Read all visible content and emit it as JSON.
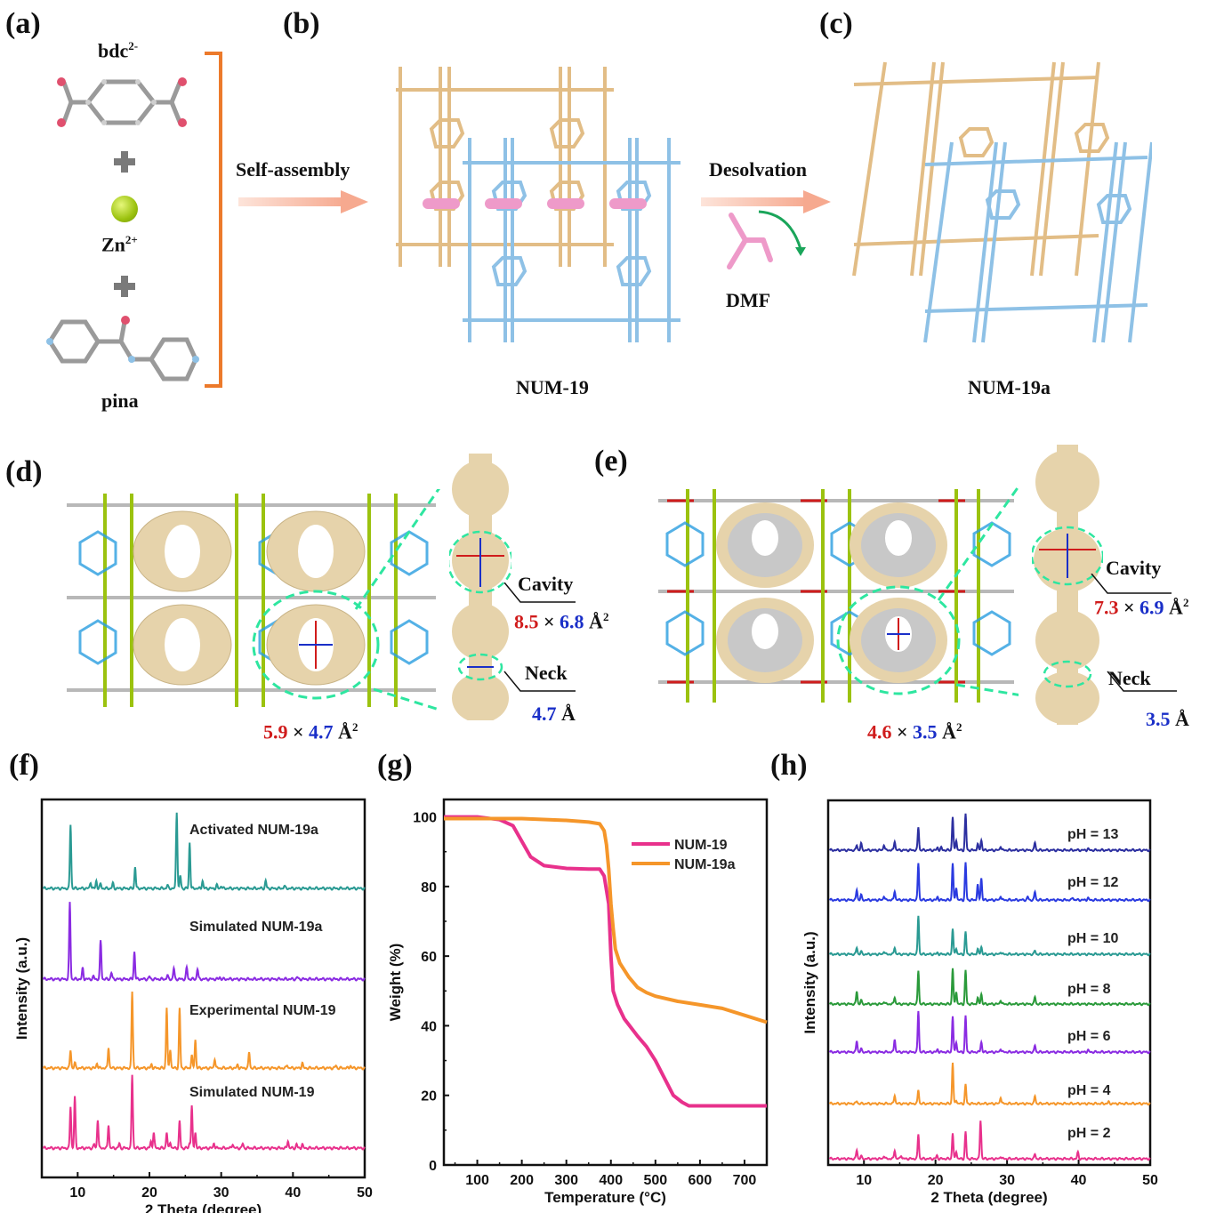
{
  "panels": {
    "a": {
      "label": "(a)",
      "ligand1": "bdc",
      "ligand1_charge": "2-",
      "metal": "Zn",
      "metal_charge": "2+",
      "ligand2": "pina",
      "plus": "+"
    },
    "b": {
      "label": "(b)",
      "arrow_text": "Self-assembly",
      "caption": "NUM-19"
    },
    "c": {
      "label": "(c)",
      "arrow_text": "Desolvation",
      "solvent": "DMF",
      "caption": "NUM-19a"
    },
    "d": {
      "label": "(d)",
      "channel_w": "5.9",
      "channel_h": "4.7",
      "unit": "Å",
      "sup": "2",
      "times": "×",
      "cavity_label": "Cavity",
      "cavity_w": "8.5",
      "cavity_h": "6.8",
      "neck_label": "Neck",
      "neck": "4.7"
    },
    "e": {
      "label": "(e)",
      "channel_w": "4.6",
      "channel_h": "3.5",
      "unit": "Å",
      "sup": "2",
      "times": "×",
      "cavity_label": "Cavity",
      "cavity_w": "7.3",
      "cavity_h": "6.9",
      "neck_label": "Neck",
      "neck": "3.5"
    },
    "f": {
      "label": "(f)"
    },
    "g": {
      "label": "(g)"
    },
    "h": {
      "label": "(h)"
    }
  },
  "colors": {
    "tan": "#e2bd86",
    "blue_frame": "#8ec1e6",
    "pink": "#ee9ac9",
    "orange_bracket": "#ec7a2b",
    "arrow": "#f6b39b",
    "green_arrow": "#1aa55a",
    "red_dim": "#d01c1c",
    "blue_dim": "#1a2fc8",
    "dash": "#2ee6a0"
  },
  "chart_data": [
    {
      "id": "f",
      "type": "line",
      "title": "",
      "xlabel": "2 Theta (degree)",
      "ylabel": "Intensity (a.u.)",
      "xlim": [
        5,
        50
      ],
      "xticks": [
        10,
        20,
        30,
        40,
        50
      ],
      "stacked": true,
      "series": [
        {
          "name": "Activated NUM-19a",
          "color": "#2a9a93",
          "peaks": [
            [
              9.0,
              1.0
            ],
            [
              11.8,
              0.1
            ],
            [
              12.6,
              0.12
            ],
            [
              13.2,
              0.07
            ],
            [
              14.9,
              0.08
            ],
            [
              18.0,
              0.34
            ],
            [
              22.5,
              0.05
            ],
            [
              23.8,
              1.2
            ],
            [
              24.3,
              0.2
            ],
            [
              25.6,
              0.72
            ],
            [
              27.4,
              0.12
            ],
            [
              29.4,
              0.05
            ],
            [
              30.0,
              0.04
            ],
            [
              36.2,
              0.12
            ],
            [
              38.8,
              0.04
            ]
          ]
        },
        {
          "name": "Simulated NUM-19a",
          "color": "#8a2be2",
          "peaks": [
            [
              8.9,
              1.2
            ],
            [
              10.7,
              0.17
            ],
            [
              12.2,
              0.04
            ],
            [
              13.2,
              0.6
            ],
            [
              14.7,
              0.1
            ],
            [
              17.9,
              0.43
            ],
            [
              20.0,
              0.04
            ],
            [
              22.5,
              0.06
            ],
            [
              23.4,
              0.17
            ],
            [
              25.2,
              0.18
            ],
            [
              26.7,
              0.16
            ],
            [
              29.8,
              0.03
            ],
            [
              40.6,
              0.03
            ]
          ]
        },
        {
          "name": "Experimental NUM-19",
          "color": "#f5962a",
          "peaks": [
            [
              9.0,
              0.28
            ],
            [
              9.6,
              0.08
            ],
            [
              12.7,
              0.08
            ],
            [
              14.3,
              0.33
            ],
            [
              17.6,
              1.2
            ],
            [
              20.3,
              0.06
            ],
            [
              22.4,
              0.95
            ],
            [
              22.9,
              0.3
            ],
            [
              24.2,
              0.93
            ],
            [
              25.9,
              0.2
            ],
            [
              26.4,
              0.45
            ],
            [
              29.1,
              0.15
            ],
            [
              32.3,
              0.05
            ],
            [
              33.9,
              0.25
            ],
            [
              39.2,
              0.05
            ],
            [
              41.3,
              0.08
            ],
            [
              46.0,
              0.04
            ],
            [
              48.0,
              0.04
            ]
          ]
        },
        {
          "name": "Simulated NUM-19",
          "color": "#e8318c",
          "peaks": [
            [
              9.0,
              0.65
            ],
            [
              9.6,
              0.8
            ],
            [
              12.3,
              0.06
            ],
            [
              12.8,
              0.45
            ],
            [
              14.3,
              0.37
            ],
            [
              15.8,
              0.07
            ],
            [
              17.6,
              1.15
            ],
            [
              20.2,
              0.1
            ],
            [
              20.6,
              0.25
            ],
            [
              22.4,
              0.25
            ],
            [
              22.9,
              0.1
            ],
            [
              24.2,
              0.42
            ],
            [
              25.6,
              0.08
            ],
            [
              25.9,
              0.66
            ],
            [
              26.4,
              0.25
            ],
            [
              29.0,
              0.08
            ],
            [
              31.6,
              0.07
            ],
            [
              33.0,
              0.07
            ],
            [
              39.3,
              0.12
            ],
            [
              40.5,
              0.06
            ],
            [
              41.3,
              0.06
            ]
          ]
        }
      ]
    },
    {
      "id": "g",
      "type": "line",
      "title": "",
      "xlabel": "Temperature (°C)",
      "ylabel": "Weight (%)",
      "xlim": [
        25,
        750
      ],
      "ylim": [
        0,
        105
      ],
      "xticks": [
        100,
        200,
        300,
        400,
        500,
        600,
        700
      ],
      "yticks": [
        0,
        20,
        40,
        60,
        80,
        100
      ],
      "legend": "top-right",
      "series": [
        {
          "name": "NUM-19",
          "color": "#e8318c",
          "x": [
            25,
            100,
            150,
            180,
            200,
            220,
            250,
            300,
            350,
            375,
            385,
            395,
            400,
            405,
            415,
            430,
            460,
            480,
            500,
            520,
            540,
            560,
            575,
            600,
            700,
            750
          ],
          "y": [
            100,
            100,
            99.2,
            97.5,
            93,
            88.5,
            86,
            85.2,
            85,
            85,
            83,
            75,
            60,
            50,
            46,
            42,
            37,
            34,
            30,
            25,
            20,
            18,
            17,
            17,
            17,
            17
          ]
        },
        {
          "name": "NUM-19a",
          "color": "#f5962a",
          "x": [
            25,
            100,
            200,
            300,
            350,
            375,
            385,
            390,
            395,
            400,
            405,
            410,
            420,
            440,
            460,
            480,
            500,
            550,
            600,
            650,
            700,
            750
          ],
          "y": [
            99.5,
            99.5,
            99.5,
            99,
            98.5,
            98,
            96,
            92,
            85,
            75,
            68,
            62,
            58,
            54,
            51,
            49.5,
            48.5,
            47,
            46,
            45,
            43,
            41
          ]
        }
      ]
    },
    {
      "id": "h",
      "type": "line",
      "title": "",
      "xlabel": "2 Theta (degree)",
      "ylabel": "Intensity (a.u.)",
      "xlim": [
        5,
        50
      ],
      "xticks": [
        10,
        20,
        30,
        40,
        50
      ],
      "stacked": true,
      "series": [
        {
          "name": "pH = 13",
          "color": "#2c2fa0",
          "peaks": [
            [
              9.0,
              0.1
            ],
            [
              9.6,
              0.13
            ],
            [
              12.8,
              0.11
            ],
            [
              14.3,
              0.18
            ],
            [
              17.6,
              0.45
            ],
            [
              20.3,
              0.05
            ],
            [
              20.8,
              0.05
            ],
            [
              22.4,
              0.65
            ],
            [
              22.9,
              0.2
            ],
            [
              24.2,
              0.7
            ],
            [
              25.9,
              0.12
            ],
            [
              26.4,
              0.2
            ],
            [
              29.1,
              0.08
            ],
            [
              33.9,
              0.15
            ],
            [
              41.3,
              0.03
            ]
          ]
        },
        {
          "name": "pH = 12",
          "color": "#2a3ae0",
          "peaks": [
            [
              9.0,
              0.2
            ],
            [
              9.6,
              0.1
            ],
            [
              12.8,
              0.08
            ],
            [
              14.3,
              0.18
            ],
            [
              17.6,
              0.72
            ],
            [
              20.3,
              0.06
            ],
            [
              22.4,
              0.72
            ],
            [
              22.9,
              0.25
            ],
            [
              24.2,
              0.72
            ],
            [
              25.9,
              0.3
            ],
            [
              26.4,
              0.43
            ],
            [
              29.1,
              0.08
            ],
            [
              32.9,
              0.06
            ],
            [
              33.9,
              0.16
            ],
            [
              39.2,
              0.05
            ],
            [
              41.3,
              0.04
            ]
          ]
        },
        {
          "name": "pH = 10",
          "color": "#2a9a93",
          "peaks": [
            [
              9.0,
              0.13
            ],
            [
              9.6,
              0.05
            ],
            [
              12.8,
              0.06
            ],
            [
              14.3,
              0.14
            ],
            [
              17.6,
              0.75
            ],
            [
              20.3,
              0.03
            ],
            [
              22.4,
              0.5
            ],
            [
              22.9,
              0.12
            ],
            [
              24.2,
              0.43
            ],
            [
              25.9,
              0.1
            ],
            [
              26.4,
              0.15
            ],
            [
              29.1,
              0.05
            ],
            [
              33.9,
              0.07
            ]
          ]
        },
        {
          "name": "pH = 8",
          "color": "#2a9a3a",
          "peaks": [
            [
              9.0,
              0.25
            ],
            [
              9.6,
              0.07
            ],
            [
              12.8,
              0.05
            ],
            [
              14.3,
              0.14
            ],
            [
              17.6,
              0.65
            ],
            [
              22.4,
              0.7
            ],
            [
              22.9,
              0.25
            ],
            [
              24.2,
              0.65
            ],
            [
              25.9,
              0.12
            ],
            [
              26.4,
              0.2
            ],
            [
              29.1,
              0.08
            ],
            [
              33.9,
              0.14
            ]
          ]
        },
        {
          "name": "pH = 6",
          "color": "#8a2be2",
          "peaks": [
            [
              9.0,
              0.22
            ],
            [
              9.6,
              0.06
            ],
            [
              14.3,
              0.26
            ],
            [
              17.6,
              0.8
            ],
            [
              20.3,
              0.05
            ],
            [
              22.4,
              0.7
            ],
            [
              22.9,
              0.2
            ],
            [
              24.2,
              0.7
            ],
            [
              26.4,
              0.2
            ],
            [
              29.1,
              0.07
            ],
            [
              33.9,
              0.13
            ],
            [
              41.3,
              0.04
            ]
          ]
        },
        {
          "name": "pH = 4",
          "color": "#f5962a",
          "peaks": [
            [
              9.0,
              0.05
            ],
            [
              14.3,
              0.17
            ],
            [
              17.6,
              0.27
            ],
            [
              22.4,
              0.8
            ],
            [
              22.9,
              0.07
            ],
            [
              24.2,
              0.37
            ],
            [
              29.1,
              0.13
            ],
            [
              33.9,
              0.15
            ],
            [
              44.2,
              0.03
            ]
          ]
        },
        {
          "name": "pH = 2",
          "color": "#e8318c",
          "peaks": [
            [
              9.0,
              0.17
            ],
            [
              9.6,
              0.05
            ],
            [
              12.8,
              0.06
            ],
            [
              14.3,
              0.17
            ],
            [
              15.2,
              0.07
            ],
            [
              17.6,
              0.48
            ],
            [
              20.2,
              0.06
            ],
            [
              22.4,
              0.5
            ],
            [
              22.9,
              0.15
            ],
            [
              24.2,
              0.52
            ],
            [
              26.3,
              0.75
            ],
            [
              29.1,
              0.05
            ],
            [
              33.9,
              0.09
            ],
            [
              39.9,
              0.12
            ]
          ]
        }
      ]
    }
  ]
}
